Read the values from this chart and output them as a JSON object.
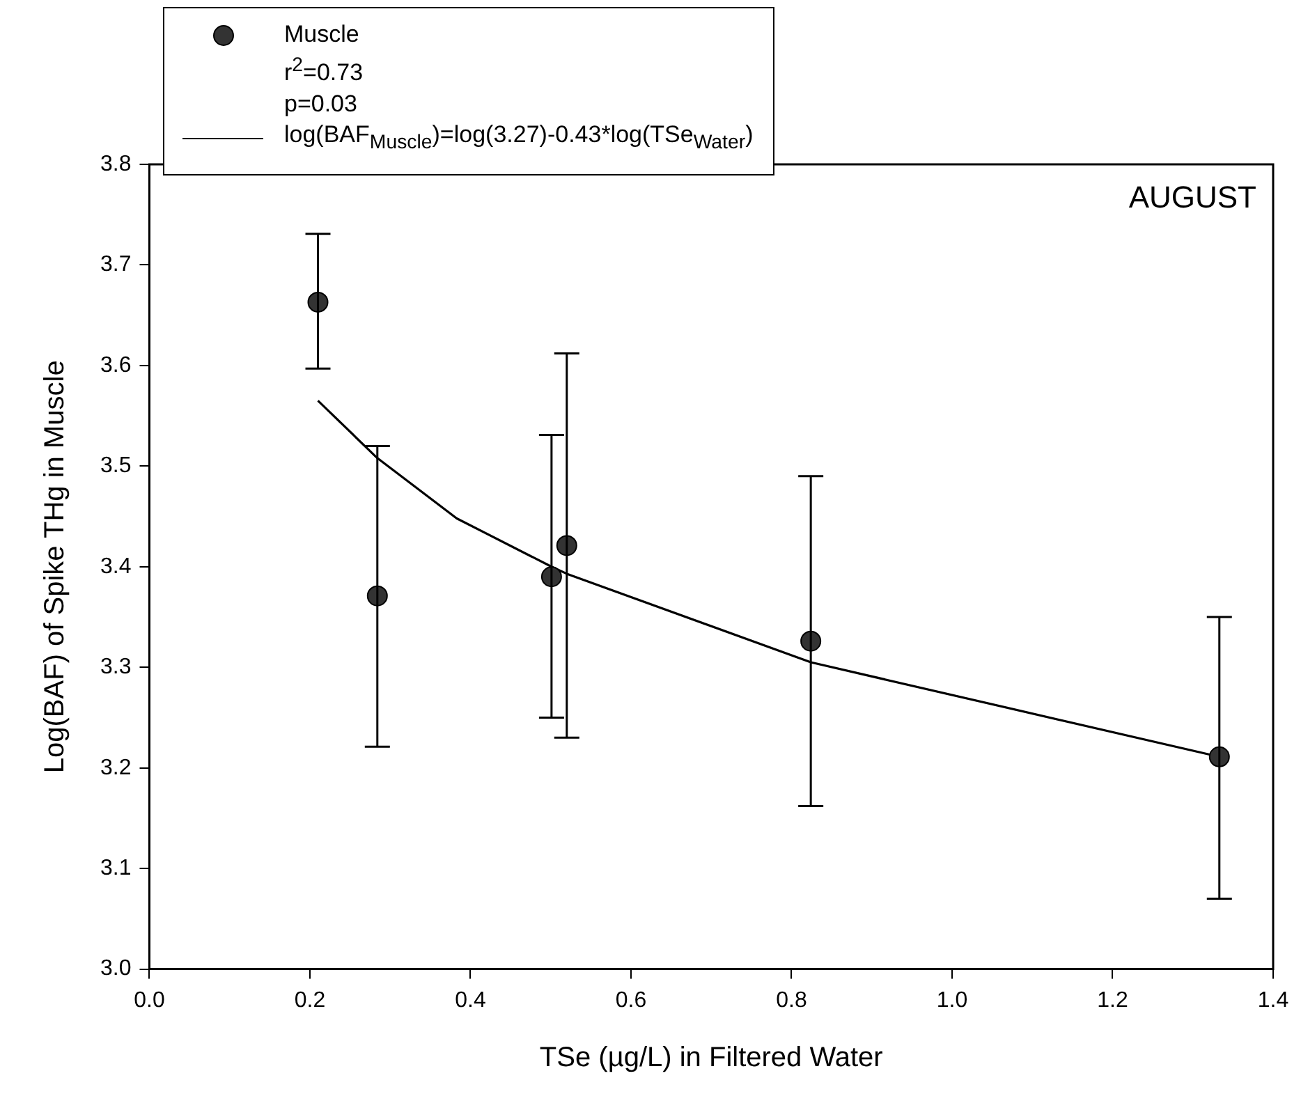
{
  "chart_data": {
    "type": "scatter",
    "xlabel": "TSe (µg/L) in Filtered Water",
    "ylabel": "Log(BAF) of Spike THg in Muscle",
    "xlim": [
      0,
      1.4
    ],
    "xticks": [
      {
        "value": 0,
        "label": "0.0"
      },
      0.2,
      0.4,
      0.6,
      0.8,
      {
        "value": 1,
        "label": "1.0"
      },
      1.2,
      1.4
    ],
    "ylim": [
      3.0,
      3.8
    ],
    "yticks": [
      {
        "value": 3,
        "label": "3.0"
      },
      3.1,
      3.2,
      3.3,
      3.4,
      3.5,
      3.6,
      3.7,
      3.8
    ],
    "grid": false,
    "legend": "top left",
    "annotations": [
      "r$^{2}$=0.73",
      "p=0.03",
      "AUGUST"
    ],
    "series": [
      {
        "name": "Muscle",
        "marker": "circle",
        "color": "#333333",
        "x": [
          0.21,
          0.284,
          0.501,
          0.52,
          0.824,
          1.333
        ],
        "values": [
          3.663,
          3.371,
          3.39,
          3.421,
          3.326,
          3.211
        ],
        "errors": [
          [
            3.597,
            3.731
          ],
          [
            3.221,
            3.52
          ],
          [
            3.25,
            3.531
          ],
          [
            3.23,
            3.612
          ],
          [
            3.162,
            3.49
          ],
          [
            3.07,
            3.35
          ]
        ]
      },
      {
        "name": "log(BAF$_{Muscle}$)=log(3.27)-0.43*log(TSe$_{Water}$)",
        "type": "line",
        "marker": "none",
        "color": "#000000",
        "x": [
          0.21,
          0.284,
          0.383,
          0.501,
          0.52,
          0.824,
          1.333
        ],
        "values": [
          3.565,
          3.508,
          3.448,
          3.4,
          3.393,
          3.305,
          3.211
        ]
      }
    ]
  }
}
